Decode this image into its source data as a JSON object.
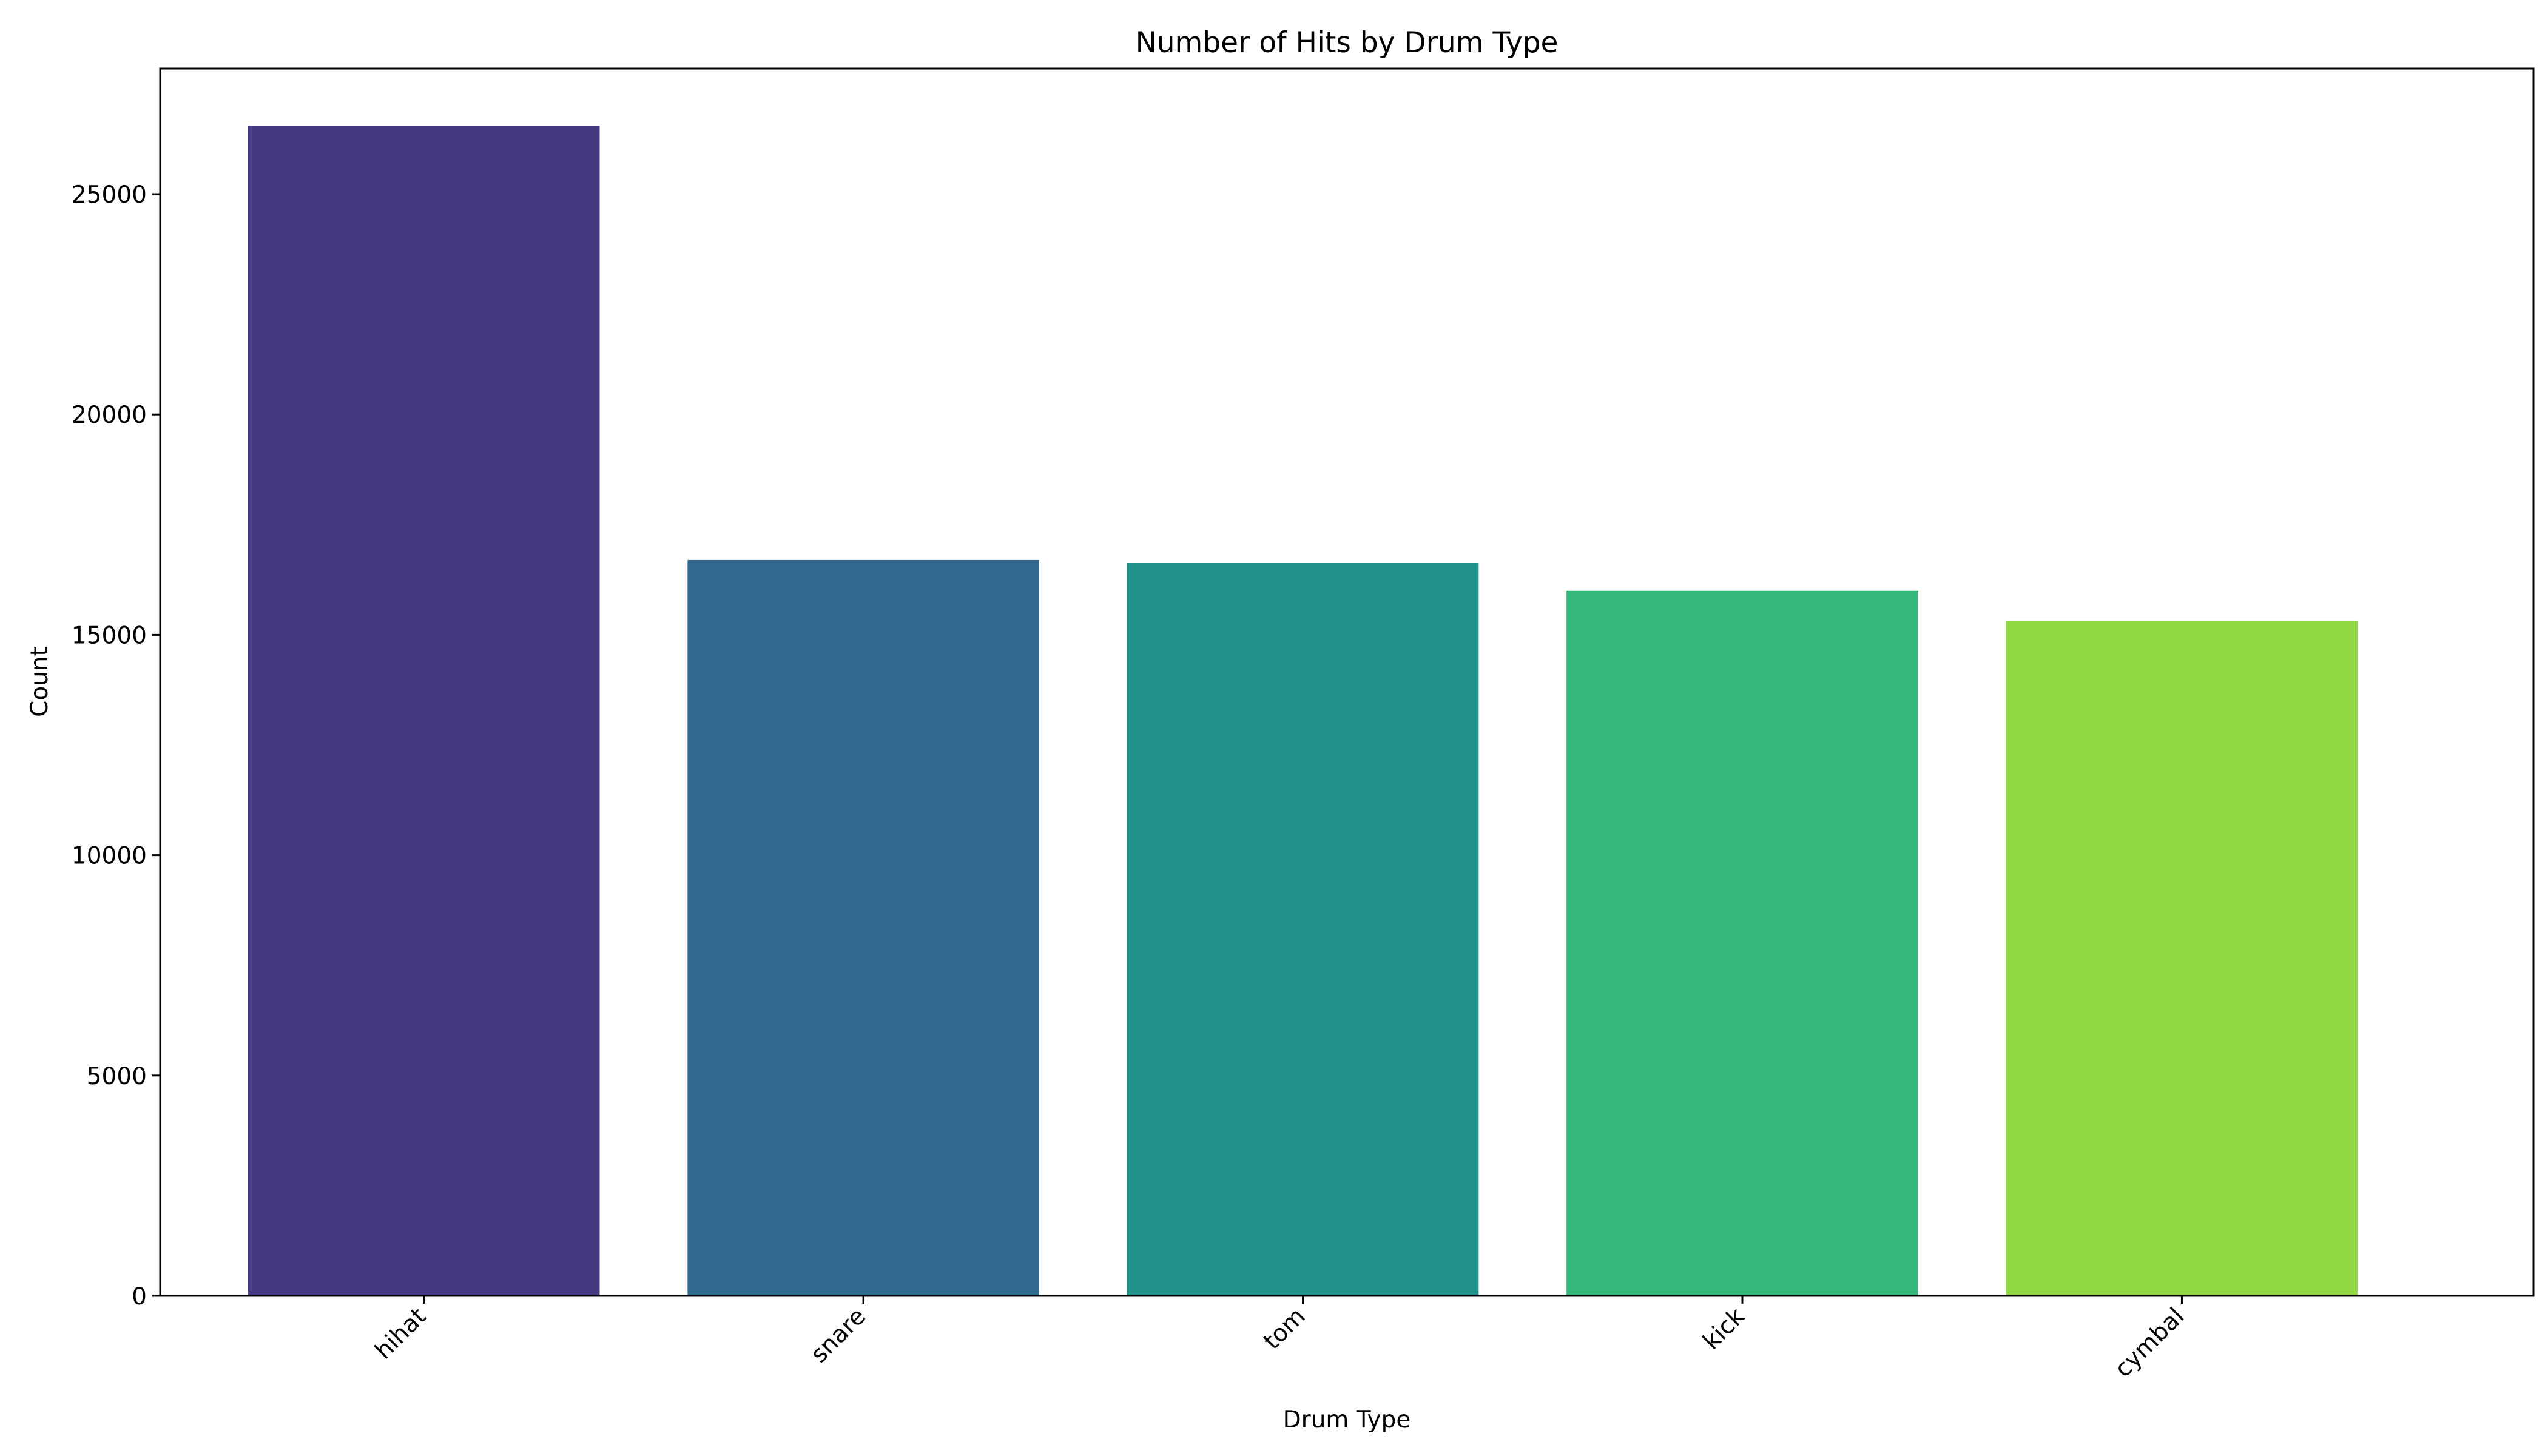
{
  "chart_data": {
    "type": "bar",
    "title": "Number of Hits by Drum Type",
    "xlabel": "Drum Type",
    "ylabel": "Count",
    "categories": [
      "hihat",
      "snare",
      "tom",
      "kick",
      "cymbal"
    ],
    "values": [
      26550,
      16700,
      16630,
      16000,
      15310
    ],
    "ylim": [
      0,
      27850
    ],
    "yticks": [
      0,
      5000,
      10000,
      15000,
      20000,
      25000
    ],
    "ytick_labels": [
      "0",
      "5000",
      "10000",
      "15000",
      "20000",
      "25000"
    ],
    "colors": [
      "#443983",
      "#31688e",
      "#21918c",
      "#35b779",
      "#90d743"
    ],
    "grid": false,
    "legend": "none"
  }
}
